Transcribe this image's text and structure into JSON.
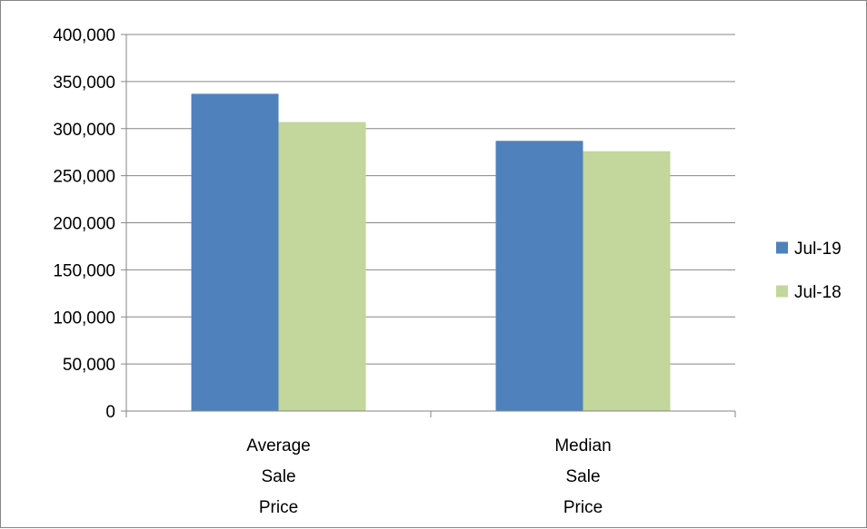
{
  "chart_data": {
    "type": "bar",
    "categories": [
      [
        "Average",
        "Sale",
        "Price"
      ],
      [
        "Median",
        "Sale",
        "Price"
      ]
    ],
    "series": [
      {
        "name": "Jul-19",
        "color": "#4f81bd",
        "values": [
          337000,
          287000
        ]
      },
      {
        "name": "Jul-18",
        "color": "#c3d69b",
        "values": [
          307000,
          276000
        ]
      }
    ],
    "yticks": [
      "0",
      "50,000",
      "100,000",
      "150,000",
      "200,000",
      "250,000",
      "300,000",
      "350,000",
      "400,000"
    ],
    "ylim": [
      0,
      400000
    ],
    "ystep": 50000,
    "grid": true,
    "legend_position": "right"
  }
}
